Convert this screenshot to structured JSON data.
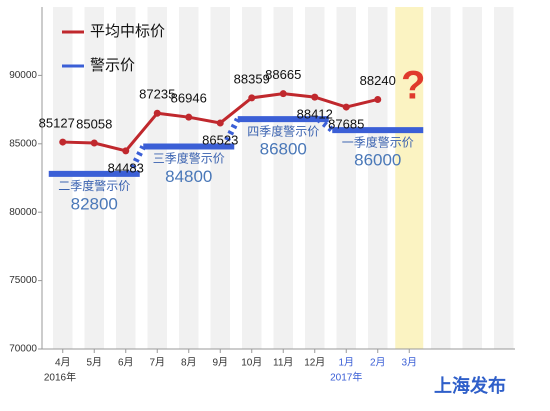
{
  "chart_data": {
    "type": "line",
    "categories": [
      "4月",
      "5月",
      "6月",
      "7月",
      "8月",
      "9月",
      "10月",
      "11月",
      "12月",
      "1月",
      "2月",
      "3月"
    ],
    "year_labels": [
      "2016年",
      "2017年"
    ],
    "series": [
      {
        "name": "平均中标价",
        "color": "#c0282d",
        "values": [
          85127,
          85058,
          84483,
          87235,
          86946,
          86523,
          88359,
          88665,
          88412,
          87685,
          88240,
          null
        ]
      }
    ],
    "warning_legend": {
      "name": "警示价",
      "color": "#3b5fd6"
    },
    "warning_levels": [
      {
        "name": "二季度警示价",
        "value": 82800
      },
      {
        "name": "三季度警示价",
        "value": 84800
      },
      {
        "name": "四季度警示价",
        "value": 86800
      },
      {
        "name": "一季度警示价",
        "value": 86000
      }
    ],
    "ylim": [
      70000,
      95000
    ],
    "yticks": [
      70000,
      75000,
      80000,
      85000,
      90000
    ],
    "annotation": "?",
    "source": "上海发布"
  }
}
